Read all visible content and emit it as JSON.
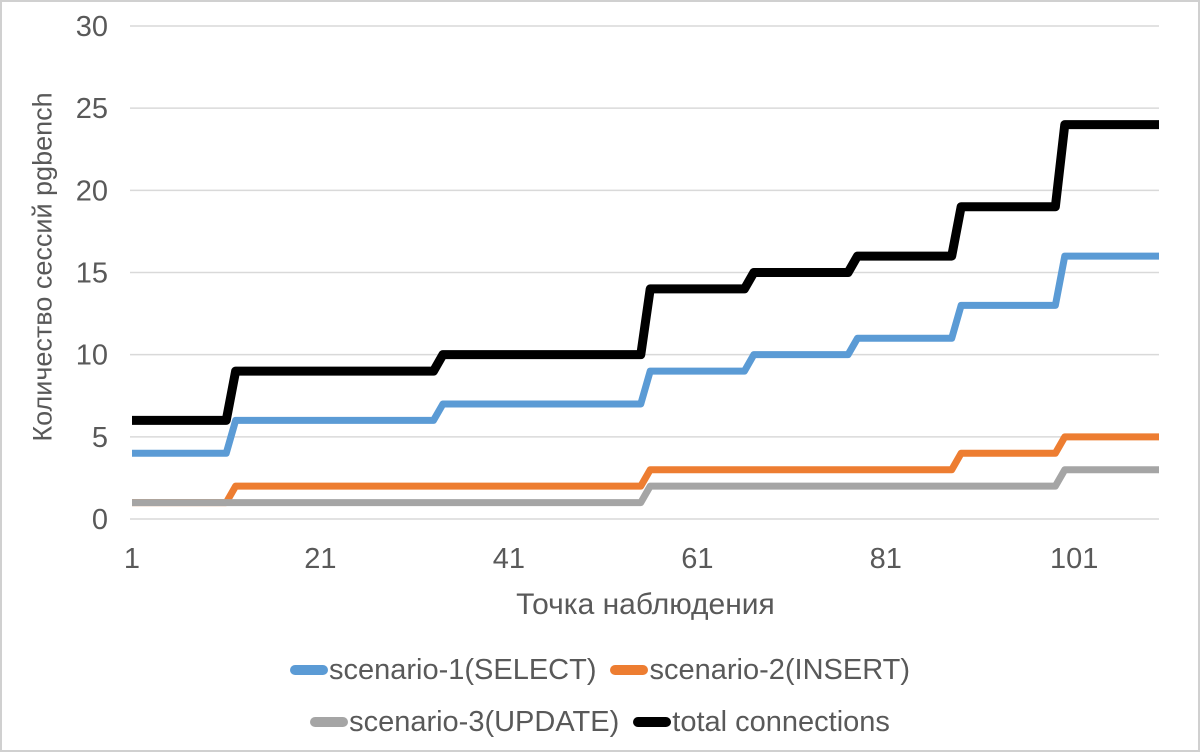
{
  "window": {
    "background": "#FFFFFF",
    "border_color": "#D0D0D0"
  },
  "colors": {
    "text": "#595959",
    "gridline": "#D9D9D9"
  },
  "chart_data": {
    "type": "line",
    "subtype": "step",
    "xlabel": "Точка наблюдения",
    "ylabel": "Количество сессий pgbench",
    "xlim": [
      1,
      110
    ],
    "ylim": [
      0,
      30
    ],
    "x_ticks": [
      1,
      21,
      41,
      61,
      81,
      101
    ],
    "y_ticks": [
      0,
      5,
      10,
      15,
      20,
      25,
      30
    ],
    "grid": "horizontal-only",
    "legend_position": "bottom",
    "series": [
      {
        "name": "scenario-1(SELECT)",
        "color": "#5B9BD5",
        "stroke_width": 7,
        "points": [
          [
            1,
            4
          ],
          [
            11,
            4
          ],
          [
            12,
            6
          ],
          [
            33,
            6
          ],
          [
            34,
            7
          ],
          [
            55,
            7
          ],
          [
            56,
            9
          ],
          [
            66,
            9
          ],
          [
            67,
            10
          ],
          [
            77,
            10
          ],
          [
            78,
            11
          ],
          [
            88,
            11
          ],
          [
            89,
            13
          ],
          [
            99,
            13
          ],
          [
            100,
            16
          ],
          [
            110,
            16
          ]
        ]
      },
      {
        "name": "scenario-2(INSERT)",
        "color": "#ED7D31",
        "stroke_width": 7,
        "points": [
          [
            1,
            1
          ],
          [
            11,
            1
          ],
          [
            12,
            2
          ],
          [
            55,
            2
          ],
          [
            56,
            3
          ],
          [
            88,
            3
          ],
          [
            89,
            4
          ],
          [
            99,
            4
          ],
          [
            100,
            5
          ],
          [
            110,
            5
          ]
        ]
      },
      {
        "name": "scenario-3(UPDATE)",
        "color": "#A5A5A5",
        "stroke_width": 7,
        "points": [
          [
            1,
            1
          ],
          [
            55,
            1
          ],
          [
            56,
            2
          ],
          [
            99,
            2
          ],
          [
            100,
            3
          ],
          [
            110,
            3
          ]
        ]
      },
      {
        "name": "total connections",
        "color": "#000000",
        "stroke_width": 9,
        "points": [
          [
            1,
            6
          ],
          [
            11,
            6
          ],
          [
            12,
            9
          ],
          [
            33,
            9
          ],
          [
            34,
            10
          ],
          [
            55,
            10
          ],
          [
            56,
            14
          ],
          [
            66,
            14
          ],
          [
            67,
            15
          ],
          [
            77,
            15
          ],
          [
            78,
            16
          ],
          [
            88,
            16
          ],
          [
            89,
            19
          ],
          [
            99,
            19
          ],
          [
            100,
            24
          ],
          [
            110,
            24
          ]
        ]
      }
    ]
  }
}
